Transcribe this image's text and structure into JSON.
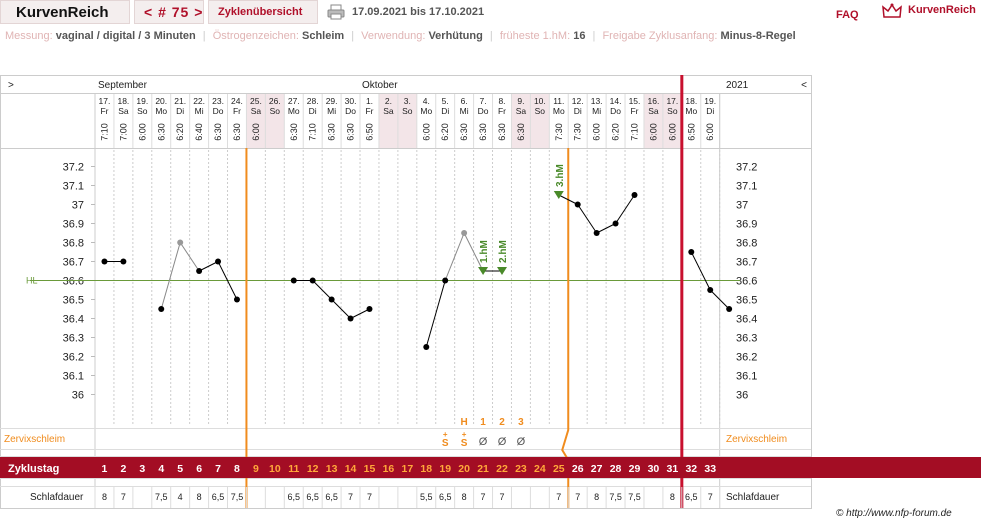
{
  "header": {
    "app_title": "KurvenReich",
    "cycle_nav": "< # 75 >",
    "cycles_link": "Zyklenübersicht",
    "date_range": "17.09.2021 bis 17.10.2021",
    "faq": "FAQ",
    "brand": "KurvenReich",
    "print_icon": "printer-icon",
    "logo_icon": "crown-icon"
  },
  "info": {
    "measurement_label": "Messung:",
    "measurement_value": "vaginal / digital / 3 Minuten",
    "estrogen_label": "Östrogenzeichen:",
    "estrogen_value": "Schleim",
    "usage_label": "Verwendung:",
    "usage_value": "Verhütung",
    "earliest_label": "früheste 1.hM:",
    "earliest_value": "16",
    "release_label": "Freigabe Zyklusanfang:",
    "release_value": "Minus-8-Regel"
  },
  "chart_data": {
    "type": "line",
    "months": {
      "left": "September",
      "middle": "Oktober",
      "right": "2021"
    },
    "nav": {
      "prev": ">",
      "next": "<"
    },
    "days": [
      {
        "date": "17.",
        "wd": "Fr",
        "time": "7:10",
        "weekend": false
      },
      {
        "date": "18.",
        "wd": "Sa",
        "time": "7:00",
        "weekend": false
      },
      {
        "date": "19.",
        "wd": "So",
        "time": "6:00",
        "weekend": false
      },
      {
        "date": "20.",
        "wd": "Mo",
        "time": "6:30",
        "weekend": false
      },
      {
        "date": "21.",
        "wd": "Di",
        "time": "6:20",
        "weekend": false
      },
      {
        "date": "22.",
        "wd": "Mi",
        "time": "6:40",
        "weekend": false
      },
      {
        "date": "23.",
        "wd": "Do",
        "time": "6:30",
        "weekend": false
      },
      {
        "date": "24.",
        "wd": "Fr",
        "time": "6:30",
        "weekend": false
      },
      {
        "date": "25.",
        "wd": "Sa",
        "time": "6:00",
        "weekend": true
      },
      {
        "date": "26.",
        "wd": "So",
        "time": "",
        "weekend": true
      },
      {
        "date": "27.",
        "wd": "Mo",
        "time": "6:30",
        "weekend": false
      },
      {
        "date": "28.",
        "wd": "Di",
        "time": "7:10",
        "weekend": false
      },
      {
        "date": "29.",
        "wd": "Mi",
        "time": "6:30",
        "weekend": false
      },
      {
        "date": "30.",
        "wd": "Do",
        "time": "6:30",
        "weekend": false
      },
      {
        "date": "1.",
        "wd": "Fr",
        "time": "6:50",
        "weekend": false
      },
      {
        "date": "2.",
        "wd": "Sa",
        "time": "",
        "weekend": true
      },
      {
        "date": "3.",
        "wd": "So",
        "time": "",
        "weekend": true
      },
      {
        "date": "4.",
        "wd": "Mo",
        "time": "6:00",
        "weekend": false
      },
      {
        "date": "5.",
        "wd": "Di",
        "time": "6:20",
        "weekend": false
      },
      {
        "date": "6.",
        "wd": "Mi",
        "time": "6:30",
        "weekend": false
      },
      {
        "date": "7.",
        "wd": "Do",
        "time": "6:30",
        "weekend": false
      },
      {
        "date": "8.",
        "wd": "Fr",
        "time": "6:30",
        "weekend": false
      },
      {
        "date": "9.",
        "wd": "Sa",
        "time": "6:30",
        "weekend": true
      },
      {
        "date": "10.",
        "wd": "So",
        "time": "",
        "weekend": true
      },
      {
        "date": "11.",
        "wd": "Mo",
        "time": "7:30",
        "weekend": false
      },
      {
        "date": "12.",
        "wd": "Di",
        "time": "7:30",
        "weekend": false
      },
      {
        "date": "13.",
        "wd": "Mi",
        "time": "6:00",
        "weekend": false
      },
      {
        "date": "14.",
        "wd": "Do",
        "time": "6:20",
        "weekend": false
      },
      {
        "date": "15.",
        "wd": "Fr",
        "time": "7:10",
        "weekend": false
      },
      {
        "date": "16.",
        "wd": "Sa",
        "time": "6:00",
        "weekend": true
      },
      {
        "date": "17.",
        "wd": "So",
        "time": "6:00",
        "weekend": true
      },
      {
        "date": "18.",
        "wd": "Mo",
        "time": "6:50",
        "weekend": false
      },
      {
        "date": "19.",
        "wd": "Di",
        "time": "6:00",
        "weekend": false
      }
    ],
    "y_ticks": [
      "37.2",
      "37.1",
      "37",
      "36.9",
      "36.8",
      "36.7",
      "36.6",
      "36.5",
      "36.4",
      "36.3",
      "36.2",
      "36.1",
      "36"
    ],
    "ylim": [
      36.0,
      37.2
    ],
    "coverline": {
      "label": "HL",
      "value": 36.6
    },
    "temperatures": [
      36.7,
      36.7,
      null,
      36.45,
      36.8,
      36.65,
      36.7,
      36.5,
      null,
      null,
      36.6,
      36.6,
      36.5,
      36.4,
      36.45,
      null,
      null,
      36.25,
      36.6,
      36.85,
      36.65,
      36.65,
      null,
      null,
      37.05,
      37.0,
      36.85,
      36.9,
      37.05,
      null,
      null,
      36.75,
      36.55,
      36.45
    ],
    "excluded_days": [
      5,
      20
    ],
    "higher_measurements": [
      {
        "day": 21,
        "label": "1.hM"
      },
      {
        "day": 22,
        "label": "2.hM"
      },
      {
        "day": 25,
        "label": "3.hM"
      }
    ],
    "cervix": {
      "label": "Zervixschleim",
      "symbols": [
        {
          "day": 19,
          "symbol": "S+"
        },
        {
          "day": 20,
          "symbol": "S+"
        },
        {
          "day": 21,
          "symbol": "Ø"
        },
        {
          "day": 22,
          "symbol": "Ø"
        },
        {
          "day": 23,
          "symbol": "Ø"
        }
      ],
      "peak_marks": [
        {
          "day": 20,
          "label": "H"
        },
        {
          "day": 21,
          "label": "1"
        },
        {
          "day": 22,
          "label": "2"
        },
        {
          "day": 23,
          "label": "3"
        }
      ]
    },
    "cycle_day_label": "Zyklustag",
    "cycle_days": [
      "1",
      "2",
      "3",
      "4",
      "5",
      "6",
      "7",
      "8",
      "9",
      "10",
      "11",
      "12",
      "13",
      "14",
      "15",
      "16",
      "17",
      "18",
      "19",
      "20",
      "21",
      "22",
      "23",
      "24",
      "25",
      "26",
      "27",
      "28",
      "29",
      "30",
      "31",
      "32",
      "33"
    ],
    "sleep_label": "Schlafdauer",
    "sleep": [
      "8",
      "7",
      "",
      "7,5",
      "4",
      "8",
      "6,5",
      "7,5",
      "",
      "",
      "6,5",
      "6,5",
      "6,5",
      "7",
      "7",
      "",
      "",
      "5,5",
      "6,5",
      "8",
      "7",
      "7",
      "",
      "",
      "7",
      "7",
      "8",
      "7,5",
      "7,5",
      "",
      "8",
      "6,5",
      "7"
    ],
    "markers": {
      "orange_before_day": 9,
      "orange_after_day": 25,
      "red_after_day": 31
    },
    "colors": {
      "orange": "#f08c1e",
      "red": "#c8102e",
      "cycle_row": "#a30d24",
      "coverline": "#6a9a3a",
      "hm": "#4a8a2a",
      "weekend": "#f3e5e8",
      "point": "#000000",
      "excluded": "#999999"
    }
  },
  "footer": {
    "copyright": "© http://www.nfp-forum.de"
  }
}
